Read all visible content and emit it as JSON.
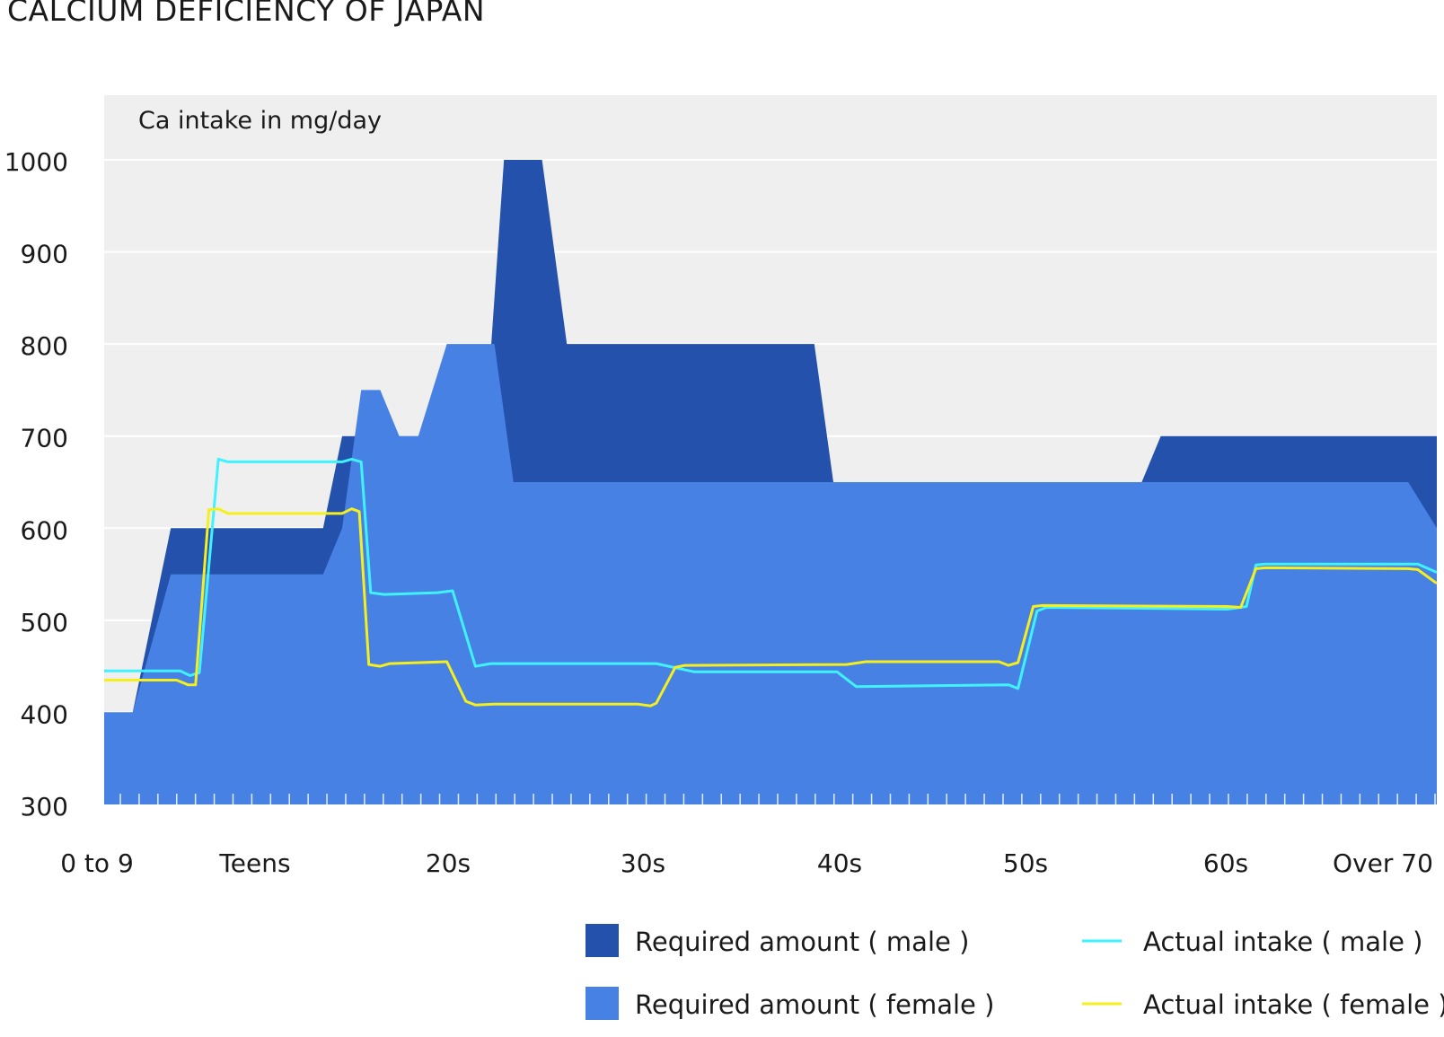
{
  "chart_data": {
    "type": "area",
    "title": "CALCIUM DEFICIENCY OF JAPAN",
    "ylabel": "Ca intake in mg/day",
    "xlabel": "",
    "ylim": [
      300,
      1000
    ],
    "yticks": [
      300,
      400,
      500,
      600,
      700,
      800,
      900,
      1000
    ],
    "categories": [
      "0 to 9",
      "Teens",
      "20s",
      "30s",
      "40s",
      "50s",
      "60s",
      "Over 70"
    ],
    "x_range": [
      0,
      70
    ],
    "grid": true,
    "legend_position": "bottom-right",
    "series": [
      {
        "name": "Required amount  ( male )",
        "kind": "area",
        "color": "#2351ab",
        "points": [
          [
            0,
            400
          ],
          [
            1.5,
            400
          ],
          [
            3.5,
            600
          ],
          [
            11.5,
            600
          ],
          [
            12.5,
            700
          ],
          [
            20,
            700
          ],
          [
            21,
            1000
          ],
          [
            23,
            1000
          ],
          [
            24.3,
            800
          ],
          [
            37.3,
            800
          ],
          [
            38.3,
            650
          ],
          [
            54.5,
            650
          ],
          [
            55.5,
            700
          ],
          [
            70,
            700
          ],
          [
            70,
            600
          ]
        ]
      },
      {
        "name": "Required amount  ( female )",
        "kind": "area",
        "color": "#4781e3",
        "points": [
          [
            0,
            400
          ],
          [
            1.5,
            400
          ],
          [
            3.5,
            550
          ],
          [
            11.5,
            550
          ],
          [
            12.5,
            600
          ],
          [
            13.5,
            750
          ],
          [
            14.5,
            750
          ],
          [
            15.5,
            700
          ],
          [
            16.5,
            700
          ],
          [
            18,
            800
          ],
          [
            20.5,
            800
          ],
          [
            21.5,
            650
          ],
          [
            68.5,
            650
          ],
          [
            70,
            600
          ]
        ]
      },
      {
        "name": "Actual intake  ( male )",
        "kind": "line",
        "color": "#40f2ff",
        "points": [
          [
            0,
            445
          ],
          [
            4,
            445
          ],
          [
            4.5,
            440
          ],
          [
            5,
            443
          ],
          [
            6,
            675
          ],
          [
            6.5,
            672
          ],
          [
            12.5,
            672
          ],
          [
            13,
            675
          ],
          [
            13.5,
            672
          ],
          [
            14,
            530
          ],
          [
            14.7,
            528
          ],
          [
            17.5,
            530
          ],
          [
            18.3,
            532
          ],
          [
            19.5,
            450
          ],
          [
            20.3,
            453
          ],
          [
            29,
            453
          ],
          [
            31,
            444
          ],
          [
            38.5,
            444
          ],
          [
            39.5,
            428
          ],
          [
            47.5,
            430
          ],
          [
            48,
            426
          ],
          [
            49,
            510
          ],
          [
            49.5,
            514
          ],
          [
            59,
            512
          ],
          [
            60,
            515
          ],
          [
            60.5,
            560
          ],
          [
            61,
            561
          ],
          [
            69,
            561
          ],
          [
            70,
            552
          ]
        ]
      },
      {
        "name": "Actual intake  ( female )",
        "kind": "line",
        "color": "#f4ef1d",
        "points": [
          [
            0,
            435
          ],
          [
            3.8,
            435
          ],
          [
            4.4,
            430
          ],
          [
            4.8,
            430
          ],
          [
            5.5,
            620
          ],
          [
            6,
            621
          ],
          [
            6.5,
            616
          ],
          [
            12.5,
            616
          ],
          [
            13,
            621
          ],
          [
            13.4,
            618
          ],
          [
            13.9,
            452
          ],
          [
            14.5,
            450
          ],
          [
            15,
            453
          ],
          [
            18,
            455
          ],
          [
            19,
            412
          ],
          [
            19.5,
            408
          ],
          [
            20.5,
            409
          ],
          [
            28,
            409
          ],
          [
            28.7,
            407
          ],
          [
            29,
            410
          ],
          [
            30,
            449
          ],
          [
            30.5,
            451
          ],
          [
            39,
            452
          ],
          [
            40,
            455
          ],
          [
            47,
            455
          ],
          [
            47.5,
            451
          ],
          [
            48,
            454
          ],
          [
            48.8,
            515
          ],
          [
            49.3,
            516
          ],
          [
            59,
            515
          ],
          [
            59.7,
            514
          ],
          [
            60.5,
            556
          ],
          [
            61,
            557
          ],
          [
            68.5,
            556
          ],
          [
            69,
            555
          ],
          [
            70,
            540
          ]
        ]
      }
    ]
  },
  "legend": [
    {
      "label": "Required amount  ( male )",
      "color": "#2351ab",
      "swatch": "square"
    },
    {
      "label": "Actual intake  ( male )",
      "color": "#40f2ff",
      "swatch": "line"
    },
    {
      "label": "Required amount  ( female )",
      "color": "#4781e3",
      "swatch": "square"
    },
    {
      "label": "Actual intake  ( female )",
      "color": "#f4ef1d",
      "swatch": "line"
    }
  ],
  "colors": {
    "plot_background": "#efefef",
    "gridline": "#ffffff"
  }
}
